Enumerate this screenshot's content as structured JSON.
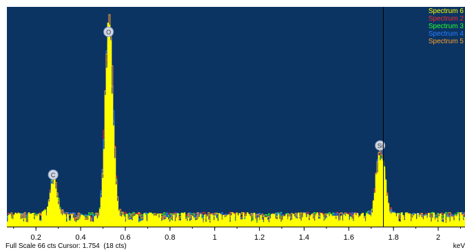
{
  "chart_data": {
    "type": "area",
    "title": "",
    "xlabel": "keV",
    "ylabel": "",
    "xlim": [
      0.07,
      2.12
    ],
    "ylim": [
      0,
      66
    ],
    "x_ticks": [
      "0.2",
      "0.4",
      "0.6",
      "0.8",
      "1",
      "1.2",
      "1.4",
      "1.6",
      "1.8",
      "2"
    ],
    "x_tick_values": [
      0.2,
      0.4,
      0.6,
      0.8,
      1.0,
      1.2,
      1.4,
      1.6,
      1.8,
      2.0
    ],
    "grid": false,
    "legend": "top-right",
    "series": [
      {
        "name": "Spectrum 6",
        "color": "#ffff00"
      },
      {
        "name": "Spectrum 2",
        "color": "#ff2a2a"
      },
      {
        "name": "Spectrum 3",
        "color": "#2aff2a"
      },
      {
        "name": "Spectrum 4",
        "color": "#2a7fff"
      },
      {
        "name": "Spectrum 5",
        "color": "#ff9f2a"
      }
    ],
    "peaks": [
      {
        "label": "C",
        "x": 0.277,
        "y": 13
      },
      {
        "label": "O",
        "x": 0.525,
        "y": 57
      },
      {
        "label": "Si",
        "x": 1.74,
        "y": 22
      }
    ],
    "cursor": {
      "x": 1.754
    }
  },
  "status": {
    "full_scale": "Full Scale 66 cts Cursor: 1.754  (18 cts)",
    "unit": "keV"
  }
}
